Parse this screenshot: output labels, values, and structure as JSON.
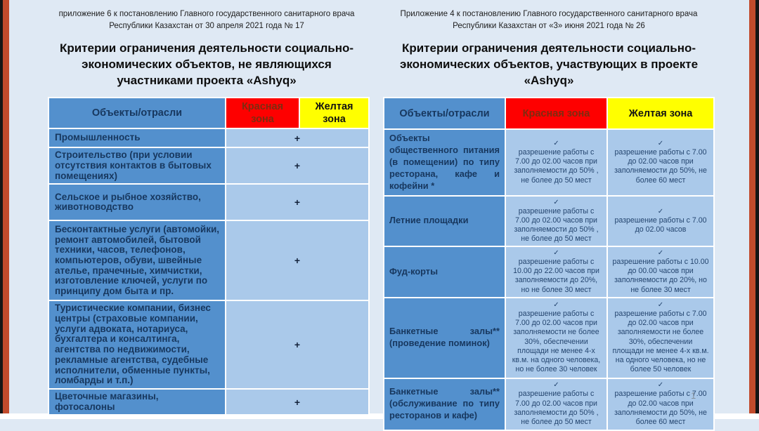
{
  "page": {
    "page_number": "1"
  },
  "colors": {
    "red_zone": "#fe0000",
    "yellow_zone": "#ffff00",
    "header_blue": "#5390cd",
    "cell_light_blue": "#aac9ea",
    "navy_text": "#17375e",
    "side_accent_orange": "#c14b2c"
  },
  "left_panel": {
    "annotation": "приложение 6 к постановлению Главного государственного санитарного врача Республики Казахстан от 30 апреля 2021 года № 17",
    "title": "Критерии ограничения деятельности социально-экономических объектов, не являющихся участниками проекта «Ashyq»",
    "table": {
      "header": {
        "objects": "Объекты/отрасли",
        "red": "Красная зона",
        "yellow": "Желтая зона"
      },
      "rows": [
        {
          "label": "Промышленность",
          "mark": "+"
        },
        {
          "label": "Строительство (при условии отсутствия контактов в бытовых помещениях)",
          "mark": "+"
        },
        {
          "label": "Сельское и рыбное хозяйство, животноводство",
          "mark": "+"
        },
        {
          "label": "Бесконтактные услуги (автомойки, ремонт автомобилей, бытовой техники, часов, телефонов, компьютеров, обуви, швейные ателье, прачечные, химчистки, изготовление ключей, услуги по принципу дом быта и пр.",
          "mark": "+"
        },
        {
          "label": "Туристические компании, бизнес центры (страховые компании, услуги адвоката, нотариуса, бухгалтера и консалтинга, агентства по недвижимости, рекламные агентства, судебные исполнители, обменные пункты, ломбарды и т.п.)",
          "mark": "+"
        },
        {
          "label": "Цветочные магазины, фотосалоны",
          "mark": "+"
        }
      ]
    }
  },
  "right_panel": {
    "annotation": "Приложение 4 к постановлению Главного государственного санитарного врача Республики Казахстан от «3» июня 2021 года № 26",
    "title": "Критерии ограничения деятельности социально-экономических объектов, участвующих в проекте «Ashyq»",
    "table": {
      "header": {
        "objects": "Объекты/отрасли",
        "red": "Красная зона",
        "yellow": "Желтая зона"
      },
      "rows": [
        {
          "label": "Объекты общественного питания (в помещении) по типу ресторана, кафе и кофейни *",
          "red": {
            "check": "✓",
            "text": "разрешение работы с 7.00 до 02.00 часов при заполняемости до 50% , не более до 50 мест"
          },
          "yellow": {
            "check": "✓",
            "text": "разрешение работы с 7.00 до 02.00 часов при заполняемости до 50%, не более 60 мест"
          }
        },
        {
          "label": "Летние площадки",
          "red": {
            "check": "✓",
            "text": "разрешение работы с 7.00 до 02.00 часов при заполняемости до 50% , не более до 50 мест"
          },
          "yellow": {
            "check": "✓",
            "text": "разрешение работы с 7.00 до 02.00 часов"
          }
        },
        {
          "label": "Фуд-корты",
          "red": {
            "check": "✓",
            "text": "разрешение работы с 10.00 до 22.00 часов при заполняемости до 20%, но не более 30 мест"
          },
          "yellow": {
            "check": "✓",
            "text": "разрешение работы с 10.00 до 00.00 часов при заполняемости до 20%, но не более 30 мест"
          }
        },
        {
          "label": "Банкетные залы** (проведение поминок)",
          "red": {
            "check": "✓",
            "text": "разрешение работы с 7.00 до 02.00 часов при заполняемости не более 30%, обеспечении площади не менее 4-х кв.м. на одного человека, но не более 30 человек"
          },
          "yellow": {
            "check": "✓",
            "text": "разрешение работы с 7.00 до 02.00 часов при заполняемости не более 30%, обеспечении площади не менее 4-х кв.м. на одного человека, но не более 50 человек"
          }
        },
        {
          "label": "Банкетные залы** (обслуживание по типу ресторанов и кафе)",
          "red": {
            "check": "✓",
            "text": "разрешение работы с 7.00 до 02.00 часов при заполняемости до 50% , не более до 50 мест"
          },
          "yellow": {
            "check": "✓",
            "text": "разрешение работы с 7.00 до 02.00 часов при заполняемости до 50%, не более 60 мест"
          }
        }
      ]
    }
  }
}
